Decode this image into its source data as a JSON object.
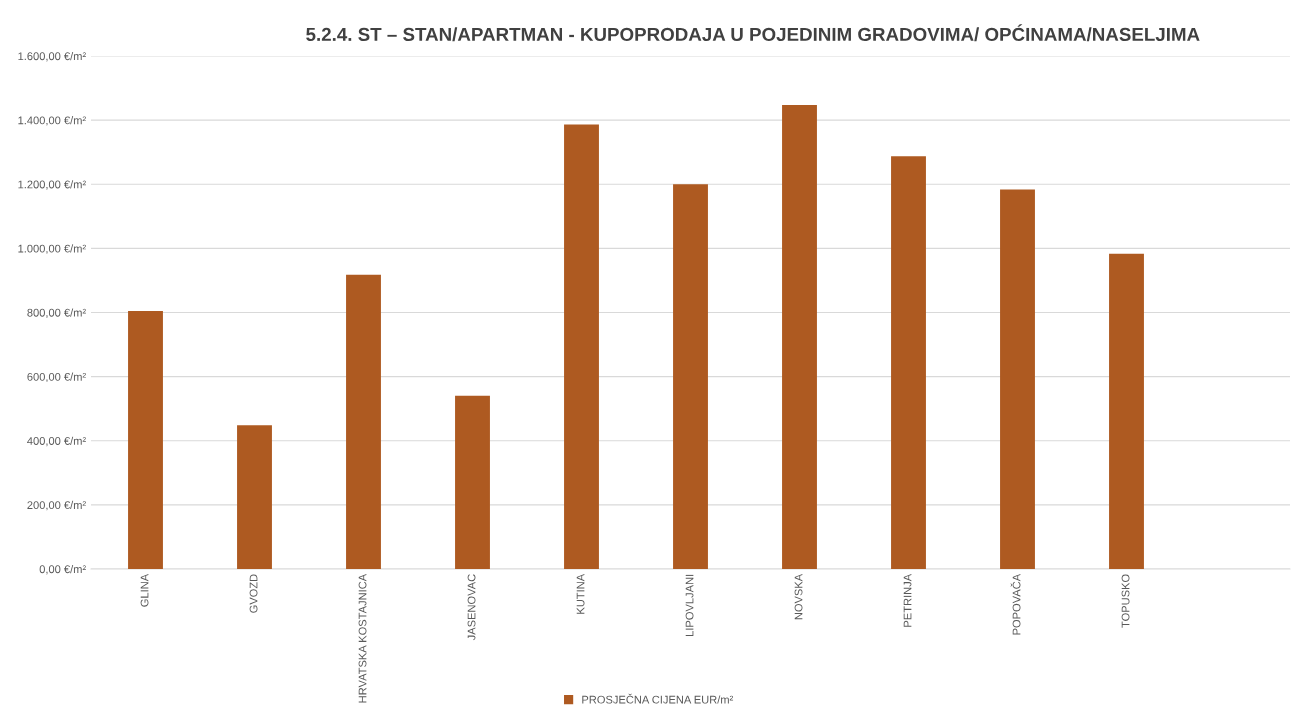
{
  "chart_data": {
    "type": "bar",
    "title": "5.2.4. ST – STAN/APARTMAN - KUPOPRODAJA U POJEDINIM GRADOVIMA/ OPĆINAMA/NASELJIMA",
    "categories": [
      "GLINA",
      "GVOZD",
      "HRVATSKA KOSTAJNICA",
      "JASENOVAC",
      "KUTINA",
      "LIPOVLJANI",
      "NOVSKA",
      "PETRINJA",
      "POPOVAČA",
      "TOPUSKO",
      null
    ],
    "series": [
      {
        "name": "PROSJEČNA CIJENA EUR/m²",
        "color": "#ae5a21",
        "values": [
          805,
          448,
          918,
          540,
          1386,
          1200,
          1447,
          1287,
          1184,
          983,
          null
        ]
      }
    ],
    "ylim": [
      0,
      1600
    ],
    "yticks": [
      {
        "value": 0,
        "label": "0,00 €/m²"
      },
      {
        "value": 200,
        "label": "200,00 €/m²"
      },
      {
        "value": 400,
        "label": "400,00 €/m²"
      },
      {
        "value": 600,
        "label": "600,00 €/m²"
      },
      {
        "value": 800,
        "label": "800,00 €/m²"
      },
      {
        "value": 1000,
        "label": "1.000,00 €/m²"
      },
      {
        "value": 1200,
        "label": "1.200,00 €/m²"
      },
      {
        "value": 1400,
        "label": "1.400,00 €/m²"
      },
      {
        "value": 1600,
        "label": "1.600,00 €/m²"
      }
    ],
    "grid": "y",
    "legend": "bottom"
  }
}
